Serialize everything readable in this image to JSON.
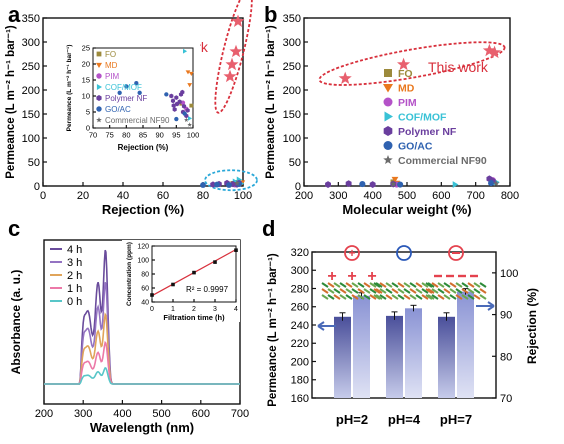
{
  "colors": {
    "star": "#e8606e",
    "fo": "#9c8a3c",
    "md": "#e9781e",
    "pim": "#b452c8",
    "cof": "#39c2d6",
    "polymer": "#6a3e9e",
    "goac": "#2f62b0",
    "nf90": "#6b6b6b",
    "ellipse_red": "#d8303c",
    "ellipse_blue": "#2aa8d8",
    "c_4h": "#6a4c9c",
    "c_3h": "#9473c2",
    "c_2h": "#e0a45a",
    "c_1h": "#ec79a8",
    "c_0h": "#58c6c8",
    "bar_dark": "#4a4f9a",
    "bar_light": "#c6cbea",
    "bar_mid": "#8a93d4",
    "arrow": "#4a6ab8",
    "charge_red": "#e4424e",
    "charge_blue": "#2a58b8"
  },
  "panels": {
    "a": "a",
    "b": "b",
    "c": "c",
    "d": "d"
  },
  "chart_data": [
    {
      "id": "a",
      "type": "scatter",
      "xlabel": "Rejection (%)",
      "ylabel": "Permeance (L m⁻² h⁻¹ bar⁻¹)",
      "xlim": [
        0,
        100
      ],
      "ylim": [
        0,
        350
      ],
      "xticks": [
        "0",
        "20",
        "40",
        "60",
        "80",
        "100"
      ],
      "yticks": [
        "0",
        "50",
        "100",
        "150",
        "200",
        "250",
        "300",
        "350"
      ],
      "annotation": "This work",
      "series": [
        {
          "name": "This work",
          "key": "star",
          "points": [
            [
              97.5,
              343
            ],
            [
              96.5,
              280
            ],
            [
              94.5,
              253
            ],
            [
              93.5,
              228
            ]
          ]
        },
        {
          "name": "FO",
          "key": "fo",
          "points": [
            [
              95,
              5
            ],
            [
              97.5,
              7
            ]
          ]
        },
        {
          "name": "MD",
          "key": "md",
          "points": [
            [
              99.5,
              7
            ]
          ]
        },
        {
          "name": "PIM",
          "key": "pim",
          "points": [
            [
              96,
              3
            ]
          ]
        },
        {
          "name": "COF/MOF",
          "key": "cof",
          "points": [
            [
              96,
              9
            ],
            [
              98,
              13
            ],
            [
              99,
              5
            ]
          ]
        },
        {
          "name": "Polymer NF",
          "key": "polymer",
          "points": [
            [
              85,
              3
            ],
            [
              88,
              4
            ],
            [
              92,
              6
            ],
            [
              95,
              4
            ],
            [
              97,
              3
            ],
            [
              98,
              6
            ]
          ]
        },
        {
          "name": "GO/AC",
          "key": "goac",
          "points": [
            [
              80,
              2
            ],
            [
              87,
              3
            ],
            [
              93,
              2
            ],
            [
              98,
              4
            ]
          ]
        },
        {
          "name": "Commercial NF90",
          "key": "nf90",
          "points": [
            [
              97,
              6
            ]
          ]
        }
      ],
      "inset": {
        "xlabel": "Rejection (%)",
        "ylabel": "Permeance (L m⁻² h⁻¹ bar⁻¹)",
        "xlim": [
          70,
          100
        ],
        "ylim": [
          0,
          25
        ],
        "xticks": [
          "70",
          "75",
          "80",
          "85",
          "90",
          "95",
          "100"
        ],
        "yticks": [
          "0",
          "5",
          "10",
          "15",
          "20",
          "25"
        ],
        "series": [
          {
            "key": "fo",
            "points": [
              [
                96.5,
                7.6
              ],
              [
                99.5,
                7.0
              ]
            ]
          },
          {
            "key": "md",
            "points": [
              [
                98.5,
                17.5
              ],
              [
                99.0,
                13.5
              ],
              [
                99.5,
                17.0
              ]
            ]
          },
          {
            "key": "pim",
            "points": [
              [
                97.0,
                7.9
              ],
              [
                98.0,
                6.0
              ]
            ]
          },
          {
            "key": "cof",
            "points": [
              [
                97.5,
                24.0
              ],
              [
                99.0,
                3.0
              ]
            ]
          },
          {
            "key": "polymer",
            "points": [
              [
                93.5,
                10.0
              ],
              [
                94.0,
                8.5
              ],
              [
                94.2,
                7.0
              ],
              [
                94.5,
                5.8
              ],
              [
                95.0,
                9.5
              ],
              [
                95.2,
                7.5
              ],
              [
                96.0,
                8.2
              ],
              [
                96.4,
                10.5
              ],
              [
                96.8,
                11.2
              ],
              [
                97.0,
                5.0
              ],
              [
                97.3,
                6.8
              ],
              [
                98.0,
                3.8
              ],
              [
                98.4,
                5.5
              ]
            ]
          },
          {
            "key": "goac",
            "points": [
              [
                78.0,
                11.0
              ],
              [
                80.0,
                13.0
              ],
              [
                83.0,
                14.0
              ],
              [
                84.0,
                11.0
              ],
              [
                92.0,
                10.5
              ],
              [
                95.0,
                2.8
              ],
              [
                97.5,
                4.5
              ]
            ]
          },
          {
            "key": "nf90",
            "points": [
              [
                98.0,
                2.5
              ],
              [
                99.0,
                1.0
              ]
            ]
          }
        ]
      }
    },
    {
      "id": "b",
      "type": "scatter",
      "xlabel": "Molecular weight (%)",
      "ylabel": "Permeance (L m⁻² h⁻¹ bar⁻¹)",
      "xlim": [
        200,
        800
      ],
      "ylim": [
        0,
        350
      ],
      "xticks": [
        "200",
        "300",
        "400",
        "500",
        "600",
        "700",
        "800"
      ],
      "yticks": [
        "0",
        "50",
        "100",
        "150",
        "200",
        "250",
        "300",
        "350"
      ],
      "annotation": "This work",
      "legend": [
        "FO",
        "MD",
        "PIM",
        "COF/MOF",
        "Polymer NF",
        "GO/AC",
        "Commercial NF90"
      ],
      "series": [
        {
          "name": "This work",
          "key": "star",
          "points": [
            [
              320,
              224
            ],
            [
              490,
              253
            ],
            [
              740,
              282
            ],
            [
              755,
              278
            ]
          ]
        },
        {
          "name": "FO",
          "key": "fo",
          "points": [
            [
              460,
              8
            ],
            [
              470,
              4
            ]
          ]
        },
        {
          "name": "MD",
          "key": "md",
          "points": [
            [
              465,
              14
            ],
            [
              470,
              6
            ],
            [
              745,
              9
            ]
          ]
        },
        {
          "name": "PIM",
          "key": "pim",
          "points": [
            [
              470,
              3
            ],
            [
              750,
              12
            ]
          ]
        },
        {
          "name": "COF/MOF",
          "key": "cof",
          "points": [
            [
              640,
              3
            ],
            [
              760,
              8
            ]
          ]
        },
        {
          "name": "Polymer NF",
          "key": "polymer",
          "points": [
            [
              270,
              3
            ],
            [
              330,
              5
            ],
            [
              400,
              3
            ],
            [
              460,
              4
            ],
            [
              740,
              15
            ],
            [
              750,
              10
            ]
          ]
        },
        {
          "name": "GO/AC",
          "key": "goac",
          "points": [
            [
              370,
              4
            ],
            [
              480,
              3
            ],
            [
              745,
              6
            ]
          ]
        },
        {
          "name": "Commercial NF90",
          "key": "nf90",
          "points": [
            [
              460,
              4
            ],
            [
              760,
              5
            ]
          ]
        }
      ]
    },
    {
      "id": "c",
      "type": "line",
      "xlabel": "Wavelength (nm)",
      "ylabel": "Absorbance (a. u.)",
      "xlim": [
        200,
        700
      ],
      "xticks": [
        "200",
        "300",
        "400",
        "500",
        "600",
        "700"
      ],
      "series": [
        {
          "name": "4 h",
          "key": "c_4h",
          "scale": 1.0
        },
        {
          "name": "3 h",
          "key": "c_3h",
          "scale": 0.76
        },
        {
          "name": "2 h",
          "key": "c_2h",
          "scale": 0.52
        },
        {
          "name": "1 h",
          "key": "c_1h",
          "scale": 0.31
        },
        {
          "name": "0 h",
          "key": "c_0h",
          "scale": 0.12
        }
      ],
      "inset": {
        "xlabel": "Filtration time (h)",
        "ylabel": "Concentration (ppm)",
        "xlim": [
          0,
          4
        ],
        "ylim": [
          40,
          120
        ],
        "xticks": [
          "0",
          "1",
          "2",
          "3",
          "4"
        ],
        "yticks": [
          "40",
          "60",
          "80",
          "100",
          "120"
        ],
        "x": [
          0,
          1,
          2,
          3,
          4
        ],
        "y": [
          50,
          65,
          82,
          97,
          114
        ],
        "annotation": "R² = 0.9997"
      }
    },
    {
      "id": "d",
      "type": "bar",
      "categories": [
        "pH=2",
        "pH=4",
        "pH=7"
      ],
      "ylabel": "Permeance (L m⁻² h⁻¹ bar⁻¹)",
      "y2label": "Rejection (%)",
      "ylim": [
        160,
        320
      ],
      "y2lim": [
        70,
        105
      ],
      "yticks": [
        "160",
        "180",
        "200",
        "220",
        "240",
        "260",
        "280",
        "300",
        "320"
      ],
      "y2ticks": [
        "70",
        "80",
        "90",
        "100"
      ],
      "series": [
        {
          "name": "Permeance",
          "axis": "left",
          "values": [
            249,
            250,
            249
          ]
        },
        {
          "name": "Rejection",
          "axis": "right",
          "values": [
            94.5,
            91.5,
            95.5
          ]
        }
      ],
      "charges": [
        "+",
        "○",
        "−"
      ]
    }
  ]
}
